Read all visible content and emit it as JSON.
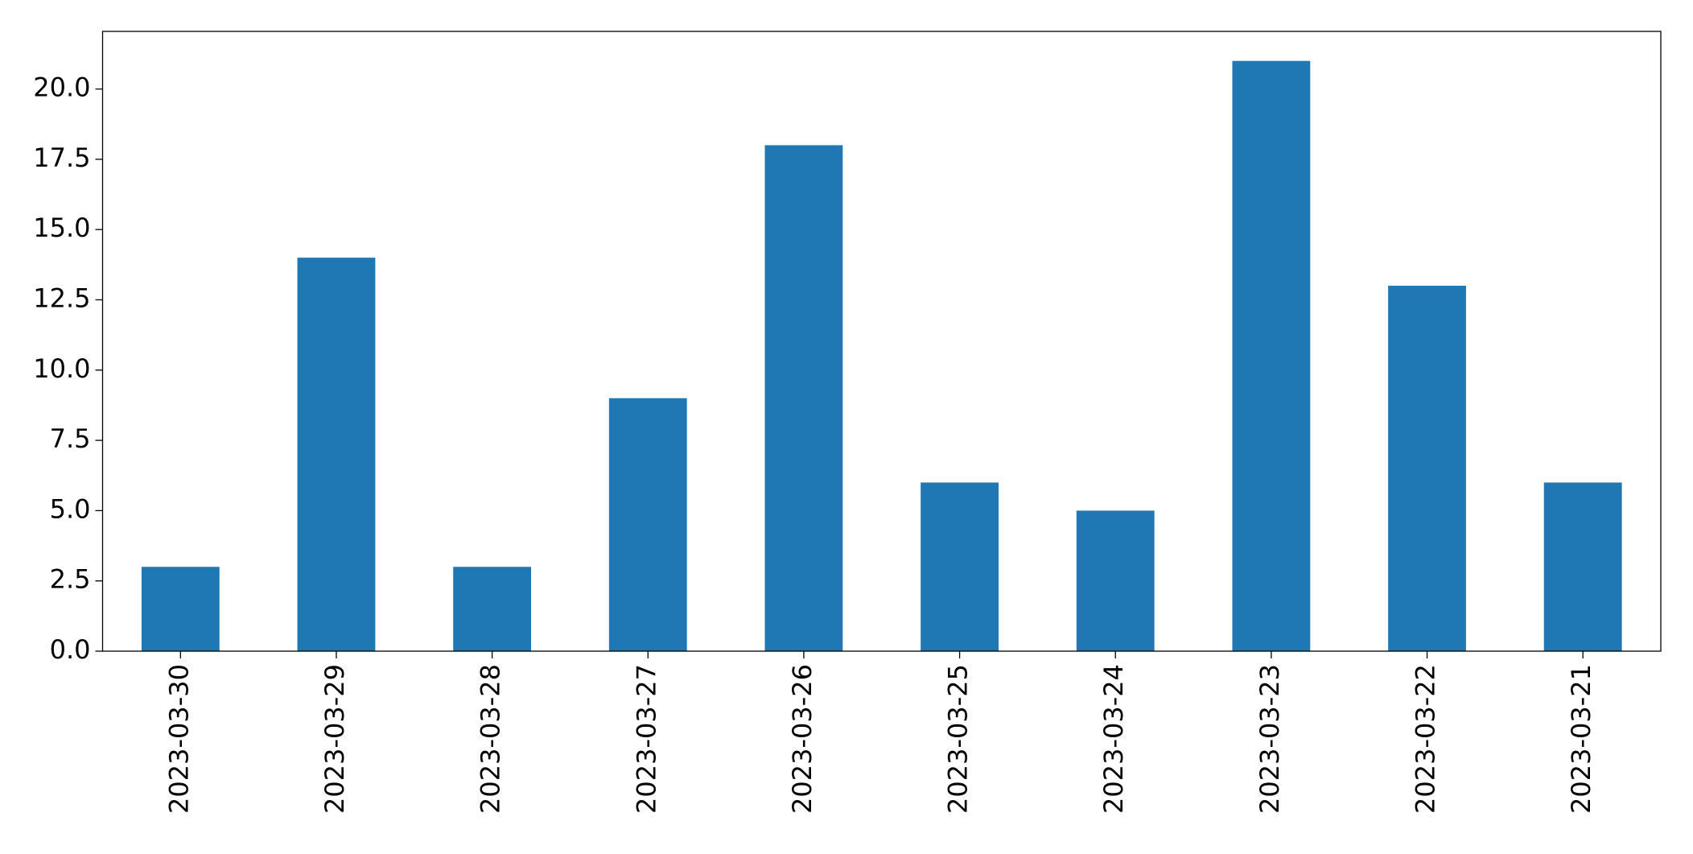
{
  "chart_data": {
    "type": "bar",
    "categories": [
      "2023-03-30",
      "2023-03-29",
      "2023-03-28",
      "2023-03-27",
      "2023-03-26",
      "2023-03-25",
      "2023-03-24",
      "2023-03-23",
      "2023-03-22",
      "2023-03-21"
    ],
    "values": [
      3,
      14,
      3,
      9,
      18,
      6,
      5,
      21,
      13,
      6
    ],
    "color": "#1f77b4",
    "ylim": [
      0,
      22.05
    ],
    "yticks": [
      {
        "value": 0,
        "label": "0.0"
      },
      {
        "value": 2.5,
        "label": "2.5"
      },
      {
        "value": 5,
        "label": "5.0"
      },
      {
        "value": 7.5,
        "label": "7.5"
      },
      {
        "value": 10,
        "label": "10.0"
      },
      {
        "value": 12.5,
        "label": "12.5"
      },
      {
        "value": 15,
        "label": "15.0"
      },
      {
        "value": 17.5,
        "label": "17.5"
      },
      {
        "value": 20,
        "label": "20.0"
      }
    ],
    "grid": false
  }
}
